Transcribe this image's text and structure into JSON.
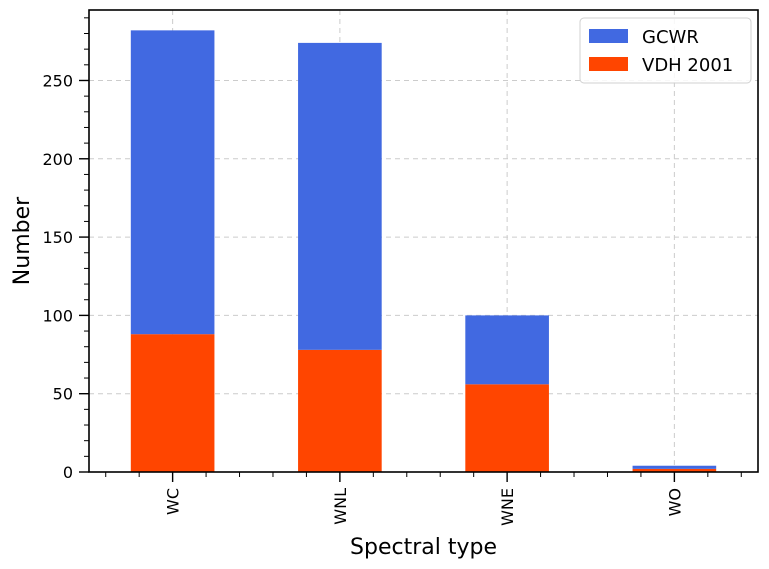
{
  "chart_data": {
    "type": "bar",
    "stacked": true,
    "categories": [
      "WC",
      "WNL",
      "WNE",
      "WO"
    ],
    "series": [
      {
        "name": "VDH 2001",
        "color": "#ff4500",
        "values": [
          88,
          78,
          56,
          2
        ]
      },
      {
        "name": "GCWR",
        "color": "#4169e1",
        "values": [
          194,
          196,
          44,
          2
        ]
      }
    ],
    "xlabel": "Spectral type",
    "ylabel": "Number",
    "ylim": [
      0,
      295
    ],
    "yticks": [
      0,
      50,
      100,
      150,
      200,
      250
    ],
    "grid": true,
    "legend_position": "top-right",
    "legend_order": [
      "GCWR",
      "VDH 2001"
    ],
    "tick_label_rotation": "vertical"
  }
}
